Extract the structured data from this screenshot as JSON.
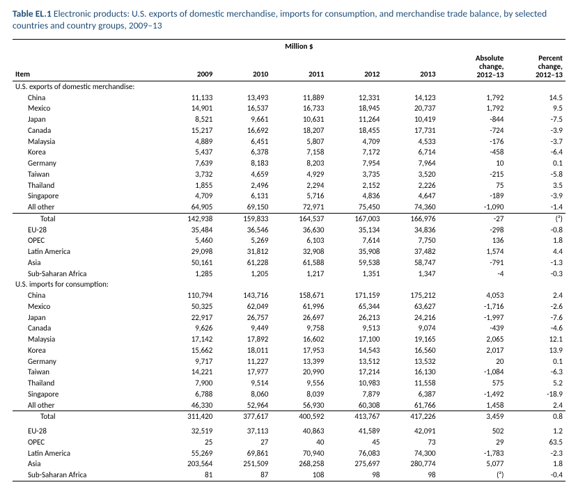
{
  "title_prefix": "Table EL.1",
  "title_rest": " Electronic products: U.S. exports of domestic merchandise, imports for consumption, and merchandise trade balance, by selected countries and country groups, 2009–13",
  "unit_header": "Million $",
  "columns": {
    "item": "Item",
    "y2009": "2009",
    "y2010": "2010",
    "y2011": "2011",
    "y2012": "2012",
    "y2013": "2013",
    "abs1": "Absolute",
    "abs2": "change,",
    "abs3": "2012–13",
    "pct1": "Percent",
    "pct2": "change,",
    "pct3": "2012–13"
  },
  "sections": [
    {
      "label": "U.S. exports of domestic merchandise:",
      "rows": [
        {
          "item": "China",
          "v": [
            "11,133",
            "13,493",
            "11,889",
            "12,331",
            "14,123",
            "1,792",
            "14.5"
          ]
        },
        {
          "item": "Mexico",
          "v": [
            "14,901",
            "16,537",
            "16,733",
            "18,945",
            "20,737",
            "1,792",
            "9.5"
          ]
        },
        {
          "item": "Japan",
          "v": [
            "8,521",
            "9,661",
            "10,631",
            "11,264",
            "10,419",
            "-844",
            "-7.5"
          ]
        },
        {
          "item": "Canada",
          "v": [
            "15,217",
            "16,692",
            "18,207",
            "18,455",
            "17,731",
            "-724",
            "-3.9"
          ]
        },
        {
          "item": "Malaysia",
          "v": [
            "4,889",
            "6,451",
            "5,807",
            "4,709",
            "4,533",
            "-176",
            "-3.7"
          ]
        },
        {
          "item": "Korea",
          "v": [
            "5,437",
            "6,378",
            "7,158",
            "7,172",
            "6,714",
            "-458",
            "-6.4"
          ]
        },
        {
          "item": "Germany",
          "v": [
            "7,639",
            "8,183",
            "8,203",
            "7,954",
            "7,964",
            "10",
            "0.1"
          ]
        },
        {
          "item": "Taiwan",
          "v": [
            "3,732",
            "4,659",
            "4,929",
            "3,735",
            "3,520",
            "-215",
            "-5.8"
          ]
        },
        {
          "item": "Thailand",
          "v": [
            "1,855",
            "2,496",
            "2,294",
            "2,152",
            "2,226",
            "75",
            "3.5"
          ]
        },
        {
          "item": "Singapore",
          "v": [
            "4,709",
            "6,131",
            "5,716",
            "4,836",
            "4,647",
            "-189",
            "-3.9"
          ]
        },
        {
          "item": "All other",
          "v": [
            "64,905",
            "69,150",
            "72,971",
            "75,450",
            "74,360",
            "-1,090",
            "-1.4"
          ]
        },
        {
          "item": "Total",
          "total": true,
          "line_above": true,
          "v": [
            "142,938",
            "159,833",
            "164,537",
            "167,003",
            "166,976",
            "-27",
            "(²)"
          ]
        },
        {
          "item": "EU-28",
          "v": [
            "35,484",
            "36,546",
            "36,630",
            "35,134",
            "34,836",
            "-298",
            "-0.8"
          ]
        },
        {
          "item": "OPEC",
          "v": [
            "5,460",
            "5,269",
            "6,103",
            "7,614",
            "7,750",
            "136",
            "1.8"
          ]
        },
        {
          "item": "Latin America",
          "v": [
            "29,098",
            "31,812",
            "32,908",
            "35,908",
            "37,482",
            "1,574",
            "4.4"
          ]
        },
        {
          "item": "Asia",
          "v": [
            "50,161",
            "61,228",
            "61,588",
            "59,538",
            "58,747",
            "-791",
            "-1.3"
          ]
        },
        {
          "item": "Sub-Saharan Africa",
          "v": [
            "1,285",
            "1,205",
            "1,217",
            "1,351",
            "1,347",
            "-4",
            "-0.3"
          ]
        }
      ]
    },
    {
      "label": "U.S. imports for consumption:",
      "rows": [
        {
          "item": "China",
          "v": [
            "110,794",
            "143,716",
            "158,671",
            "171,159",
            "175,212",
            "4,053",
            "2.4"
          ]
        },
        {
          "item": "Mexico",
          "v": [
            "50,325",
            "62,049",
            "61,996",
            "65,344",
            "63,627",
            "-1,716",
            "-2.6"
          ]
        },
        {
          "item": "Japan",
          "v": [
            "22,917",
            "26,757",
            "26,697",
            "26,213",
            "24,216",
            "-1,997",
            "-7.6"
          ]
        },
        {
          "item": "Canada",
          "v": [
            "9,626",
            "9,449",
            "9,758",
            "9,513",
            "9,074",
            "-439",
            "-4.6"
          ]
        },
        {
          "item": "Malaysia",
          "v": [
            "17,142",
            "17,892",
            "16,602",
            "17,100",
            "19,165",
            "2,065",
            "12.1"
          ]
        },
        {
          "item": "Korea",
          "v": [
            "15,662",
            "18,011",
            "17,953",
            "14,543",
            "16,560",
            "2,017",
            "13.9"
          ]
        },
        {
          "item": "Germany",
          "v": [
            "9,717",
            "11,227",
            "13,399",
            "13,512",
            "13,532",
            "20",
            "0.1"
          ]
        },
        {
          "item": "Taiwan",
          "v": [
            "14,221",
            "17,977",
            "20,990",
            "17,214",
            "16,130",
            "-1,084",
            "-6.3"
          ]
        },
        {
          "item": "Thailand",
          "v": [
            "7,900",
            "9,514",
            "9,556",
            "10,983",
            "11,558",
            "575",
            "5.2"
          ]
        },
        {
          "item": "Singapore",
          "v": [
            "6,788",
            "8,060",
            "8,039",
            "7,879",
            "6,387",
            "-1,492",
            "-18.9"
          ]
        },
        {
          "item": "All other",
          "v": [
            "46,330",
            "52,964",
            "56,930",
            "60,308",
            "61,766",
            "1,458",
            "2.4"
          ]
        },
        {
          "item": "Total",
          "total": true,
          "line_above": true,
          "v": [
            "311,420",
            "377,617",
            "400,592",
            "413,767",
            "417,226",
            "3,459",
            "0.8"
          ]
        },
        {
          "item": "EU-28",
          "space_above": true,
          "v": [
            "32,519",
            "37,113",
            "40,863",
            "41,589",
            "42,091",
            "502",
            "1.2"
          ]
        },
        {
          "item": "OPEC",
          "v": [
            "25",
            "27",
            "40",
            "45",
            "73",
            "29",
            "63.5"
          ]
        },
        {
          "item": "Latin America",
          "v": [
            "55,269",
            "69,861",
            "70,940",
            "76,083",
            "74,300",
            "-1,783",
            "-2.3"
          ]
        },
        {
          "item": "Asia",
          "v": [
            "203,564",
            "251,509",
            "268,258",
            "275,697",
            "280,774",
            "5,077",
            "1.8"
          ]
        },
        {
          "item": "Sub-Saharan Africa",
          "line_below": true,
          "v": [
            "81",
            "87",
            "108",
            "98",
            "98",
            "(²)",
            "-0.4"
          ]
        }
      ]
    }
  ]
}
